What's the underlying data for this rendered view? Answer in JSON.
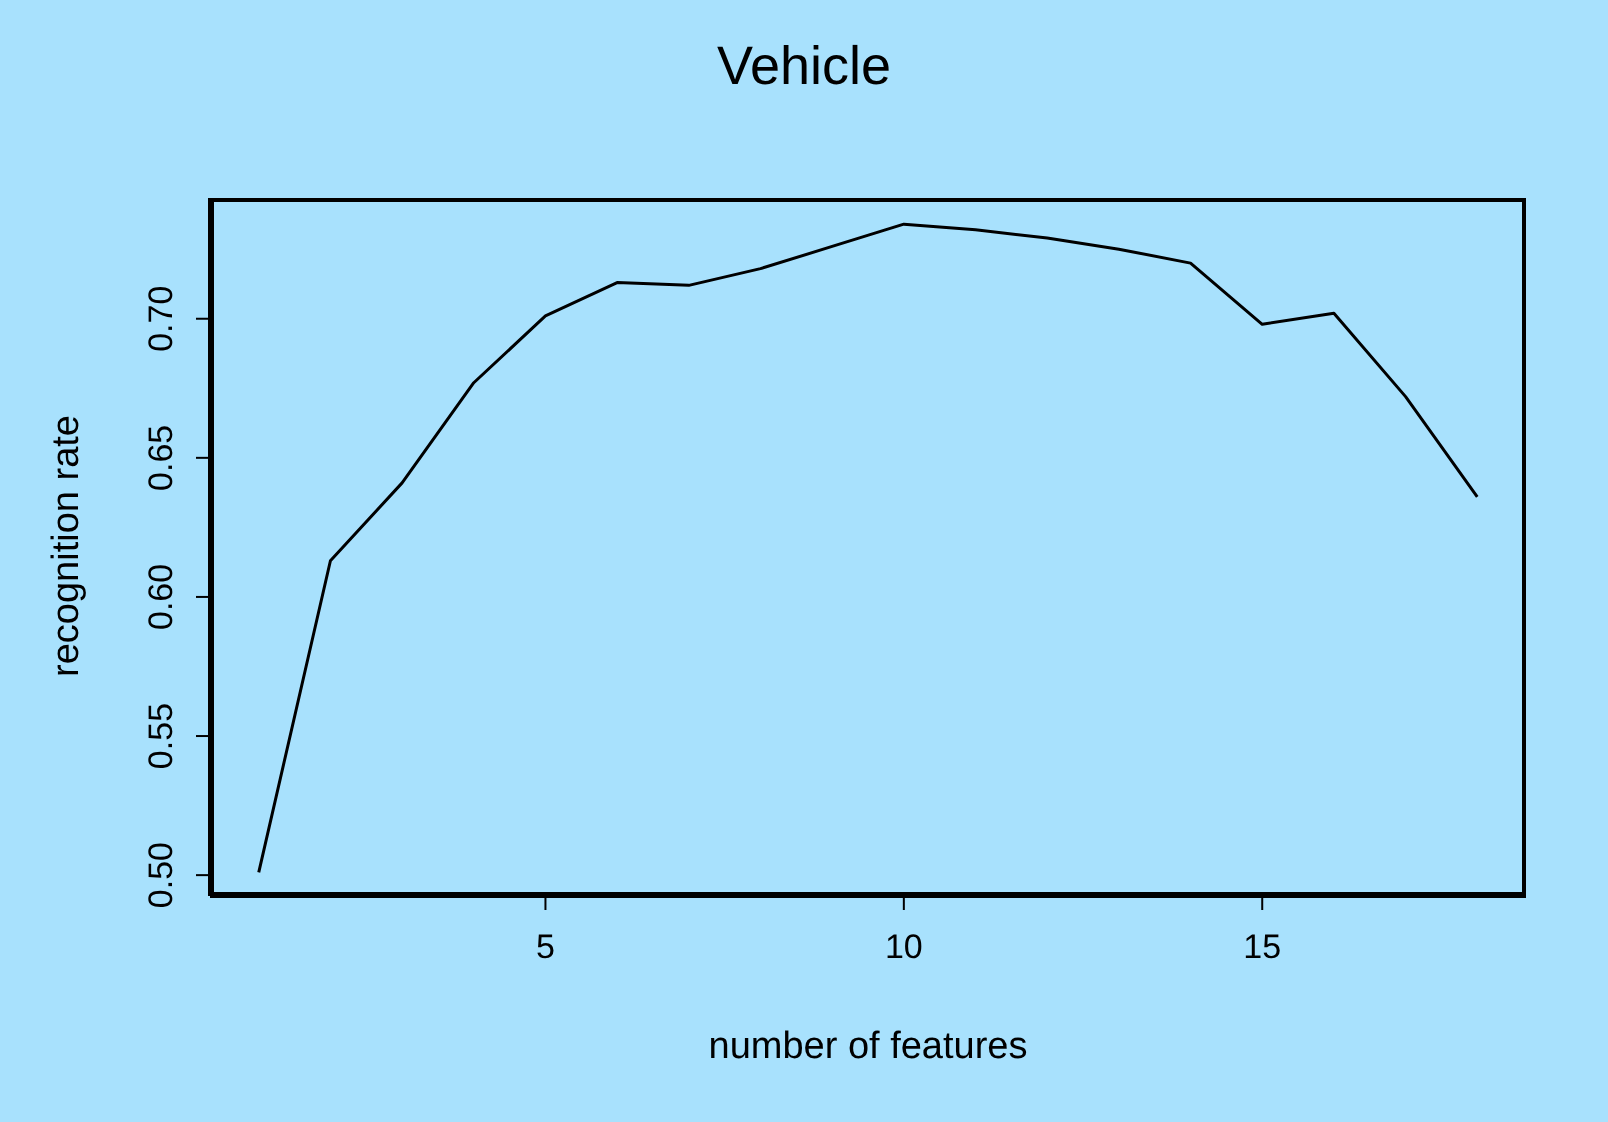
{
  "chart_data": {
    "type": "line",
    "title": "Vehicle",
    "xlabel": "number of features",
    "ylabel": "recognition rate",
    "x": [
      1,
      2,
      3,
      4,
      5,
      6,
      7,
      8,
      9,
      10,
      11,
      12,
      13,
      14,
      15,
      16,
      17,
      18
    ],
    "series": [
      {
        "color": "#000000",
        "values": [
          0.501,
          0.613,
          0.641,
          0.677,
          0.701,
          0.713,
          0.712,
          0.718,
          0.726,
          0.734,
          0.732,
          0.729,
          0.725,
          0.72,
          0.698,
          0.702,
          0.672,
          0.636
        ]
      }
    ],
    "xlim": [
      0.32,
      18.68
    ],
    "xticks": [
      5,
      10,
      15
    ],
    "ylim": [
      0.4925,
      0.7434
    ],
    "yticks": [
      {
        "value": 0.5,
        "label": "0.50"
      },
      {
        "value": 0.55,
        "label": "0.55"
      },
      {
        "value": 0.6,
        "label": "0.60"
      },
      {
        "value": 0.65,
        "label": "0.65"
      },
      {
        "value": 0.7,
        "label": "0.70"
      }
    ],
    "marker": "none",
    "line_style": "solid"
  }
}
